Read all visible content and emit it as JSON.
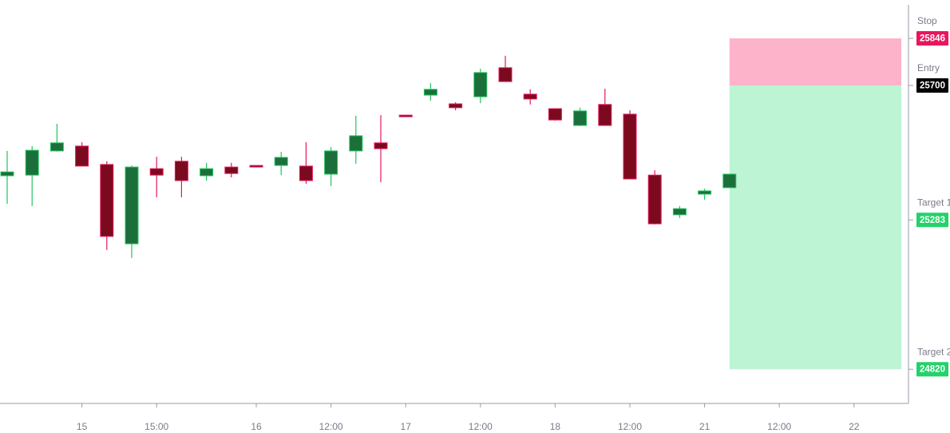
{
  "chart_data": {
    "type": "candlestick",
    "categories": [
      null,
      null,
      null,
      "15",
      null,
      null,
      "15:00",
      null,
      null,
      null,
      "16",
      null,
      null,
      "12:00",
      null,
      null,
      "17",
      null,
      null,
      "12:00",
      null,
      null,
      "18",
      null,
      null,
      "12:00",
      null,
      null,
      "21",
      null,
      null,
      "12:00",
      null,
      null,
      "22",
      null,
      null
    ],
    "open": [
      25420,
      25422,
      25497,
      25512,
      25455,
      25209,
      25442,
      25465,
      25420,
      25447,
      25452,
      25452,
      25450,
      25425,
      25497,
      25522,
      25608,
      25670,
      25643,
      25665,
      25755,
      25673,
      25628,
      25576,
      25641,
      25611,
      25422,
      25299,
      25363,
      25383,
      null,
      null,
      null,
      null,
      null,
      null,
      null
    ],
    "high": [
      25497,
      25512,
      25581,
      25524,
      25465,
      25452,
      25479,
      25479,
      25460,
      25460,
      25452,
      25494,
      25524,
      25509,
      25606,
      25608,
      25608,
      25707,
      25648,
      25752,
      25792,
      25688,
      25628,
      25631,
      25690,
      25623,
      25437,
      25326,
      25380,
      25425,
      null,
      null,
      null,
      null,
      null,
      null,
      null
    ],
    "low": [
      25333,
      25326,
      25495,
      25450,
      25190,
      25165,
      25353,
      25353,
      25405,
      25415,
      25447,
      25422,
      25395,
      25388,
      25457,
      25400,
      25603,
      25653,
      25623,
      25645,
      25712,
      25641,
      25591,
      25574,
      25576,
      25410,
      25269,
      25289,
      25346,
      25383,
      null,
      null,
      null,
      null,
      null,
      null,
      null
    ],
    "close": [
      25432,
      25499,
      25522,
      25450,
      25232,
      25447,
      25422,
      25405,
      25442,
      25427,
      25447,
      25477,
      25405,
      25497,
      25544,
      25504,
      25603,
      25688,
      25631,
      25740,
      25712,
      25658,
      25593,
      25621,
      25576,
      25410,
      25271,
      25318,
      25373,
      25425,
      null,
      null,
      null,
      null,
      null,
      null,
      null
    ],
    "up_color": "#1b6f3a",
    "up_border": "#22c55e",
    "down_color": "#7b0a1f",
    "down_border": "#e8175d",
    "levels": [
      {
        "name": "Stop",
        "value": 25846,
        "color": "#e8175d"
      },
      {
        "name": "Entry",
        "value": 25700,
        "color": "#000000"
      },
      {
        "name": "Target 1",
        "value": 25283,
        "color": "#22d36a"
      },
      {
        "name": "Target 2",
        "value": 24820,
        "color": "#22d36a"
      }
    ],
    "risk_color": "#fdb3c9",
    "reward_color": "#bdf4d4",
    "ylim": [
      24714,
      25965
    ]
  }
}
